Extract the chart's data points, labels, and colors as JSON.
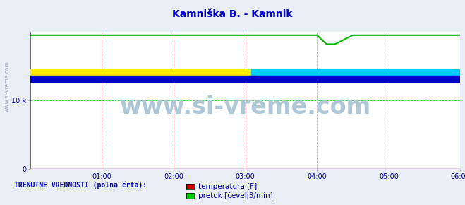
{
  "title": "Kamniška B. - Kamnik",
  "title_color": "#0000cc",
  "title_fontsize": 10,
  "bg_color": "#ffffff",
  "outer_bg_color": "#e8eef4",
  "xlim": [
    0,
    360
  ],
  "ylim": [
    0,
    20000
  ],
  "yticks": [
    0,
    10000
  ],
  "ytick_labels": [
    "0",
    "10 k"
  ],
  "xtick_positions": [
    60,
    120,
    180,
    240,
    300,
    360
  ],
  "xtick_labels": [
    "01:00",
    "02:00",
    "03:00",
    "04:00",
    "05:00",
    "06:00"
  ],
  "grid_color_v": "#ff8888",
  "grid_color_h": "#00cc00",
  "line_temp_color": "#aa00aa",
  "line_pretok_color": "#00bb00",
  "watermark": "www.si-vreme.com",
  "watermark_color": "#aec8d8",
  "watermark_fontsize": 24,
  "legend_label1": "temperatura [F]",
  "legend_label2": "pretok [čevelj3/min]",
  "legend_title": "TRENUTNE VREDNOSTI (polna črta):",
  "legend_color": "#0000aa",
  "arrow_color": "#cc0000",
  "side_text_color": "#8899bb",
  "tick_label_color": "#0000aa",
  "pretok_high": 19500,
  "pretok_dip": 18200,
  "dip_start_x": 240,
  "dip_flat_start": 248,
  "dip_flat_end": 255,
  "dip_end_x": 270,
  "temp_value": 50
}
